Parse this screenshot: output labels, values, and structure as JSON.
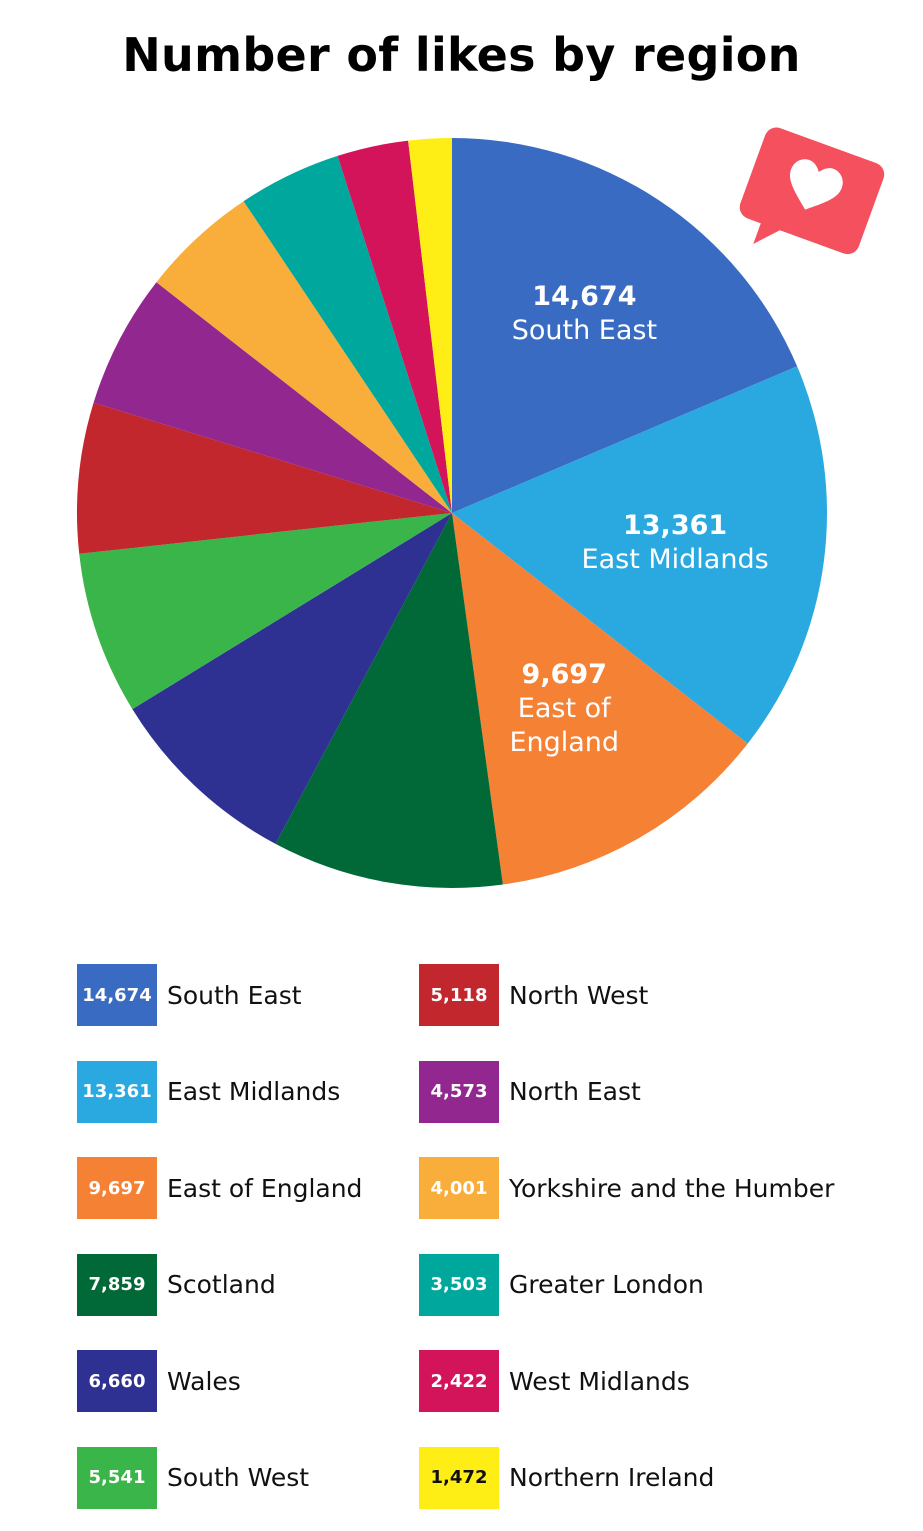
{
  "chart_data": {
    "type": "pie",
    "title": "Number of likes by region",
    "slices": [
      {
        "name": "South East",
        "value": 14674,
        "value_label": "14,674",
        "color": "#3A6BC3"
      },
      {
        "name": "East Midlands",
        "value": 13361,
        "value_label": "13,361",
        "color": "#2AA8E0"
      },
      {
        "name": "East of England",
        "value": 9697,
        "value_label": "9,697",
        "color": "#F58135"
      },
      {
        "name": "Scotland",
        "value": 7859,
        "value_label": "7,859",
        "color": "#006937"
      },
      {
        "name": "Wales",
        "value": 6660,
        "value_label": "6,660",
        "color": "#2E3192"
      },
      {
        "name": "South West",
        "value": 5541,
        "value_label": "5,541",
        "color": "#3AB54A"
      },
      {
        "name": "North West",
        "value": 5118,
        "value_label": "5,118",
        "color": "#C1272D"
      },
      {
        "name": "North East",
        "value": 4573,
        "value_label": "4,573",
        "color": "#92278F"
      },
      {
        "name": "Yorkshire and the Humber",
        "value": 4001,
        "value_label": "4,001",
        "color": "#F9AE3B"
      },
      {
        "name": "Greater London",
        "value": 3503,
        "value_label": "3,503",
        "color": "#00A79D"
      },
      {
        "name": "West Midlands",
        "value": 2422,
        "value_label": "2,422",
        "color": "#D4145A"
      },
      {
        "name": "Northern Ireland",
        "value": 1472,
        "value_label": "1,472",
        "color": "#FFEE16"
      }
    ],
    "in_slice_labels": [
      {
        "value_label": "14,674",
        "lines": [
          "South East"
        ]
      },
      {
        "value_label": "13,361",
        "lines": [
          "East Midlands"
        ]
      },
      {
        "value_label": "9,697",
        "lines": [
          "East of",
          "England"
        ]
      }
    ],
    "legend_placement": "bottom, two columns"
  },
  "badge": {
    "icon": "heart-like-icon",
    "color": "#F4505E"
  }
}
